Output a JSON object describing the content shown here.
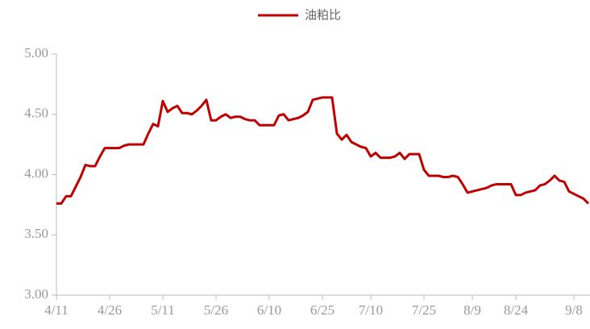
{
  "chart_data": {
    "type": "line",
    "categories": [
      "4/11",
      null,
      null,
      null,
      null,
      null,
      null,
      null,
      null,
      null,
      null,
      "4/26",
      null,
      null,
      null,
      null,
      null,
      null,
      null,
      null,
      null,
      null,
      "5/11",
      null,
      null,
      null,
      null,
      null,
      null,
      null,
      null,
      null,
      null,
      "5/26",
      null,
      null,
      null,
      null,
      null,
      null,
      null,
      null,
      null,
      null,
      "6/10",
      null,
      null,
      null,
      null,
      null,
      null,
      null,
      null,
      null,
      null,
      "6/25",
      null,
      null,
      null,
      null,
      null,
      null,
      null,
      null,
      null,
      "7/10",
      null,
      null,
      null,
      null,
      null,
      null,
      null,
      null,
      null,
      null,
      "7/25",
      null,
      null,
      null,
      null,
      null,
      null,
      null,
      null,
      null,
      "8/9",
      null,
      null,
      null,
      null,
      null,
      null,
      null,
      null,
      "8/24",
      null,
      null,
      null,
      null,
      null,
      null,
      null,
      null,
      null,
      null,
      null,
      "9/8",
      null,
      null,
      null
    ],
    "series": [
      {
        "name": "油粕比",
        "color": "#c00000",
        "values": [
          3.76,
          3.76,
          3.82,
          3.82,
          3.9,
          3.98,
          4.08,
          4.07,
          4.07,
          4.15,
          4.22,
          4.22,
          4.22,
          4.22,
          4.24,
          4.25,
          4.25,
          4.25,
          4.25,
          4.34,
          4.42,
          4.4,
          4.61,
          4.52,
          4.55,
          4.57,
          4.51,
          4.51,
          4.5,
          4.53,
          4.57,
          4.62,
          4.45,
          4.45,
          4.48,
          4.5,
          4.47,
          4.48,
          4.48,
          4.46,
          4.45,
          4.45,
          4.41,
          4.41,
          4.41,
          4.41,
          4.49,
          4.5,
          4.45,
          4.46,
          4.47,
          4.49,
          4.52,
          4.62,
          4.63,
          4.64,
          4.64,
          4.64,
          4.34,
          4.29,
          4.33,
          4.27,
          4.25,
          4.23,
          4.22,
          4.15,
          4.18,
          4.14,
          4.14,
          4.14,
          4.15,
          4.18,
          4.13,
          4.17,
          4.17,
          4.17,
          4.04,
          3.99,
          3.99,
          3.99,
          3.98,
          3.98,
          3.99,
          3.98,
          3.92,
          3.85,
          3.86,
          3.87,
          3.88,
          3.89,
          3.91,
          3.92,
          3.92,
          3.92,
          3.92,
          3.83,
          3.83,
          3.85,
          3.86,
          3.87,
          3.91,
          3.92,
          3.95,
          3.99,
          3.95,
          3.94,
          3.86,
          3.84,
          3.82,
          3.8,
          3.76
        ]
      }
    ],
    "ylim": [
      3,
      5
    ],
    "yticks": [
      {
        "value": 3,
        "label": "3.00"
      },
      {
        "value": 3.5,
        "label": "3.50"
      },
      {
        "value": 4,
        "label": "4.00"
      },
      {
        "value": 4.5,
        "label": "4.50"
      },
      {
        "value": 5,
        "label": "5.00"
      }
    ],
    "legend": "top"
  }
}
